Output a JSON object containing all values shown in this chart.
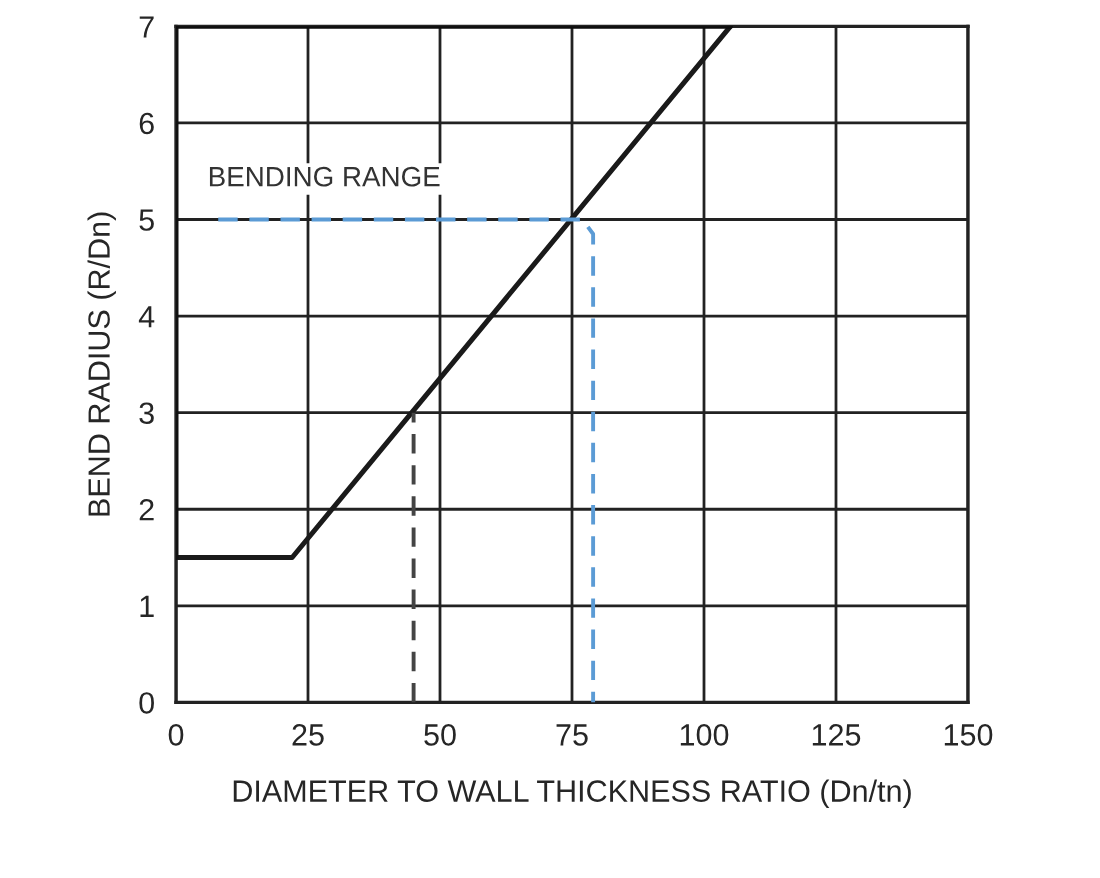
{
  "chart_data": {
    "type": "line",
    "xlabel": "DIAMETER TO WALL THICKNESS RATIO (Dn/tn)",
    "ylabel": "BEND RADIUS (R/Dn)",
    "series": [
      {
        "x": [
          0,
          22,
          105
        ],
        "values": [
          1.5,
          1.5,
          7
        ],
        "color": "#1a1a1a",
        "line_style": "solid"
      },
      {
        "x": [
          0,
          0
        ],
        "values": [
          1.5,
          7
        ],
        "color": "#111111",
        "line_style": "solid"
      },
      {
        "x": [
          0,
          105
        ],
        "values": [
          7,
          7
        ],
        "color": "#0d0d0d",
        "line_style": "solid"
      },
      {
        "x": [
          45,
          45
        ],
        "values": [
          0,
          3
        ],
        "color": "#444444",
        "line_style": "dashed"
      },
      {
        "x": [
          8,
          77,
          79,
          79
        ],
        "values": [
          5,
          5,
          4.85,
          0
        ],
        "color": "#5b9bd5",
        "line_style": "dashed"
      }
    ],
    "annotations": [
      "BENDING RANGE"
    ],
    "xlim": [
      0,
      150
    ],
    "xticks": [
      0,
      25,
      50,
      75,
      100,
      125,
      150
    ],
    "ylim": [
      0,
      7
    ],
    "yticks": [
      0,
      1,
      2,
      3,
      4,
      5,
      6,
      7
    ],
    "grid": true,
    "legend": false
  }
}
